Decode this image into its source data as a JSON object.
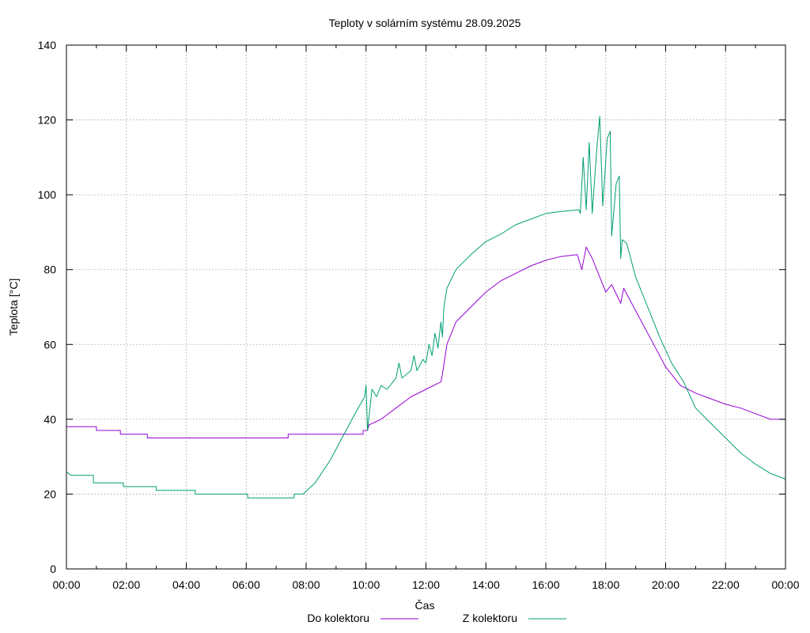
{
  "chart_data": {
    "type": "line",
    "title": "Teploty v solárním systému 28.09.2025",
    "xlabel": "Čas",
    "ylabel": "Teplota [°C]",
    "xlim": [
      0,
      24
    ],
    "ylim": [
      0,
      140
    ],
    "grid": true,
    "legend_position": "bottom-center",
    "x_ticks": [
      {
        "v": 0,
        "label": "00:00"
      },
      {
        "v": 2,
        "label": "02:00"
      },
      {
        "v": 4,
        "label": "04:00"
      },
      {
        "v": 6,
        "label": "06:00"
      },
      {
        "v": 8,
        "label": "08:00"
      },
      {
        "v": 10,
        "label": "10:00"
      },
      {
        "v": 12,
        "label": "12:00"
      },
      {
        "v": 14,
        "label": "14:00"
      },
      {
        "v": 16,
        "label": "16:00"
      },
      {
        "v": 18,
        "label": "18:00"
      },
      {
        "v": 20,
        "label": "20:00"
      },
      {
        "v": 22,
        "label": "22:00"
      },
      {
        "v": 24,
        "label": "00:00"
      }
    ],
    "y_ticks": [
      {
        "v": 0,
        "label": "0"
      },
      {
        "v": 20,
        "label": "20"
      },
      {
        "v": 40,
        "label": "40"
      },
      {
        "v": 60,
        "label": "60"
      },
      {
        "v": 80,
        "label": "80"
      },
      {
        "v": 100,
        "label": "100"
      },
      {
        "v": 120,
        "label": "120"
      },
      {
        "v": 140,
        "label": "140"
      }
    ],
    "series": [
      {
        "name": "Do kolektoru",
        "color": "#9400d3",
        "points": [
          [
            0,
            38
          ],
          [
            1.0,
            38
          ],
          [
            1.0,
            37
          ],
          [
            1.8,
            37
          ],
          [
            1.8,
            36
          ],
          [
            2.7,
            36
          ],
          [
            2.7,
            35
          ],
          [
            7.4,
            35
          ],
          [
            7.4,
            36
          ],
          [
            9.9,
            36
          ],
          [
            9.9,
            37
          ],
          [
            10.05,
            37
          ],
          [
            10.1,
            38.5
          ],
          [
            10.5,
            40
          ],
          [
            11.0,
            43
          ],
          [
            11.5,
            46
          ],
          [
            12.0,
            48
          ],
          [
            12.5,
            50
          ],
          [
            12.55,
            52
          ],
          [
            12.7,
            60
          ],
          [
            13.0,
            66
          ],
          [
            13.5,
            70
          ],
          [
            14.0,
            74
          ],
          [
            14.5,
            77
          ],
          [
            15.0,
            79
          ],
          [
            15.5,
            81
          ],
          [
            16.0,
            82.5
          ],
          [
            16.5,
            83.5
          ],
          [
            17.05,
            84
          ],
          [
            17.2,
            80
          ],
          [
            17.35,
            86
          ],
          [
            17.55,
            83
          ],
          [
            17.8,
            78
          ],
          [
            18.0,
            74
          ],
          [
            18.2,
            76
          ],
          [
            18.5,
            71
          ],
          [
            18.6,
            75
          ],
          [
            18.8,
            72
          ],
          [
            19.2,
            66
          ],
          [
            19.6,
            60
          ],
          [
            20.0,
            54
          ],
          [
            20.5,
            49
          ],
          [
            21.0,
            47
          ],
          [
            21.5,
            45.5
          ],
          [
            22.0,
            44
          ],
          [
            22.5,
            43
          ],
          [
            23.0,
            41.5
          ],
          [
            23.5,
            40
          ],
          [
            24.0,
            40
          ]
        ]
      },
      {
        "name": "Z kolektoru",
        "color": "#009e73",
        "points": [
          [
            0,
            26
          ],
          [
            0.15,
            25
          ],
          [
            0.9,
            25
          ],
          [
            0.9,
            23
          ],
          [
            1.9,
            23
          ],
          [
            1.9,
            22
          ],
          [
            3.0,
            22
          ],
          [
            3.0,
            21
          ],
          [
            4.3,
            21
          ],
          [
            4.3,
            20
          ],
          [
            6.05,
            20
          ],
          [
            6.05,
            19
          ],
          [
            7.6,
            19
          ],
          [
            7.6,
            20
          ],
          [
            7.9,
            20
          ],
          [
            8.3,
            23
          ],
          [
            8.8,
            29
          ],
          [
            9.2,
            35
          ],
          [
            9.6,
            41
          ],
          [
            9.95,
            46
          ],
          [
            10.0,
            49
          ],
          [
            10.05,
            37
          ],
          [
            10.2,
            48
          ],
          [
            10.35,
            46
          ],
          [
            10.5,
            49
          ],
          [
            10.7,
            48
          ],
          [
            11.0,
            51
          ],
          [
            11.1,
            55
          ],
          [
            11.2,
            51
          ],
          [
            11.5,
            53
          ],
          [
            11.6,
            57
          ],
          [
            11.7,
            53
          ],
          [
            11.9,
            56
          ],
          [
            12.0,
            55
          ],
          [
            12.1,
            60
          ],
          [
            12.2,
            57
          ],
          [
            12.3,
            63
          ],
          [
            12.4,
            59
          ],
          [
            12.5,
            66
          ],
          [
            12.55,
            62
          ],
          [
            12.6,
            70
          ],
          [
            12.7,
            75
          ],
          [
            13.0,
            80
          ],
          [
            13.5,
            84
          ],
          [
            14.0,
            87.5
          ],
          [
            14.5,
            89.5
          ],
          [
            15.0,
            92
          ],
          [
            15.5,
            93.5
          ],
          [
            16.0,
            95
          ],
          [
            16.5,
            95.5
          ],
          [
            17.1,
            96
          ],
          [
            17.15,
            95
          ],
          [
            17.25,
            110
          ],
          [
            17.35,
            96
          ],
          [
            17.45,
            114
          ],
          [
            17.55,
            95
          ],
          [
            17.7,
            112
          ],
          [
            17.8,
            121
          ],
          [
            17.9,
            97
          ],
          [
            18.05,
            115
          ],
          [
            18.15,
            117
          ],
          [
            18.2,
            89
          ],
          [
            18.35,
            103
          ],
          [
            18.45,
            105
          ],
          [
            18.5,
            83
          ],
          [
            18.55,
            88
          ],
          [
            18.7,
            87
          ],
          [
            19.0,
            78
          ],
          [
            19.4,
            70
          ],
          [
            19.8,
            62
          ],
          [
            20.2,
            55
          ],
          [
            20.6,
            50
          ],
          [
            21.0,
            43
          ],
          [
            21.5,
            39
          ],
          [
            22.0,
            35
          ],
          [
            22.5,
            31
          ],
          [
            23.0,
            28
          ],
          [
            23.5,
            25.5
          ],
          [
            24.0,
            24
          ]
        ]
      }
    ]
  }
}
